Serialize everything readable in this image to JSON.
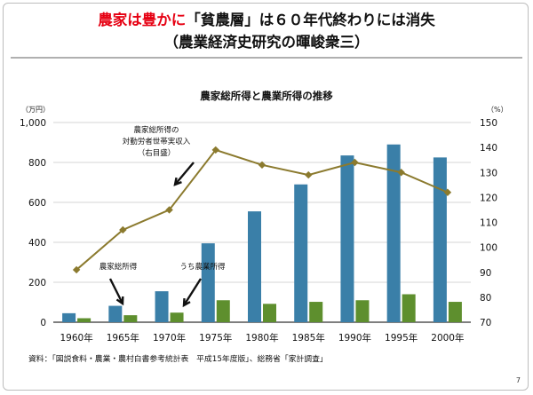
{
  "slide": {
    "title_red": "農家は豊かに",
    "title_rest": "「貧農層」は６０年代終わりには消失",
    "subtitle": "（農業経済史研究の暉峻衆三）",
    "source": "資料：「図説食料・農業・農村白書参考統計表　平成15年度版」、総務省「家計調査」",
    "page_number": "7"
  },
  "chart_data": {
    "type": "bar",
    "title": "農家総所得と農業所得の推移",
    "y_left_unit": "（万円）",
    "y_right_unit": "（%）",
    "categories": [
      "1960年",
      "1965年",
      "1970年",
      "1975年",
      "1980年",
      "1985年",
      "1990年",
      "1995年",
      "2000年"
    ],
    "y_left_ticks": [
      "0",
      "200",
      "400",
      "600",
      "800",
      "1,000"
    ],
    "y_right_ticks": [
      "70",
      "80",
      "90",
      "100",
      "110",
      "120",
      "130",
      "140",
      "150"
    ],
    "ylim_left": [
      0,
      1000
    ],
    "ylim_right": [
      70,
      150
    ],
    "series": [
      {
        "name": "農家総所得",
        "type": "bar",
        "axis": "left",
        "color": "#3a7fa8",
        "values": [
          45,
          82,
          155,
          395,
          555,
          690,
          835,
          890,
          825
        ]
      },
      {
        "name": "うち農業所得",
        "type": "bar",
        "axis": "left",
        "color": "#5e8f2e",
        "values": [
          20,
          35,
          48,
          110,
          92,
          102,
          110,
          140,
          102
        ]
      },
      {
        "name": "農家総所得の\n対勤労者世帯実収入\n（右目盛）",
        "type": "line",
        "axis": "right",
        "color": "#8b7a2e",
        "values": [
          91,
          107,
          115,
          139,
          133,
          129,
          134,
          130,
          122
        ]
      }
    ],
    "annotations": {
      "total_income": "農家総所得",
      "farm_income": "うち農業所得",
      "ratio_line": [
        "農家総所得の",
        "対勤労者世帯実収入",
        "（右目盛）"
      ]
    }
  }
}
